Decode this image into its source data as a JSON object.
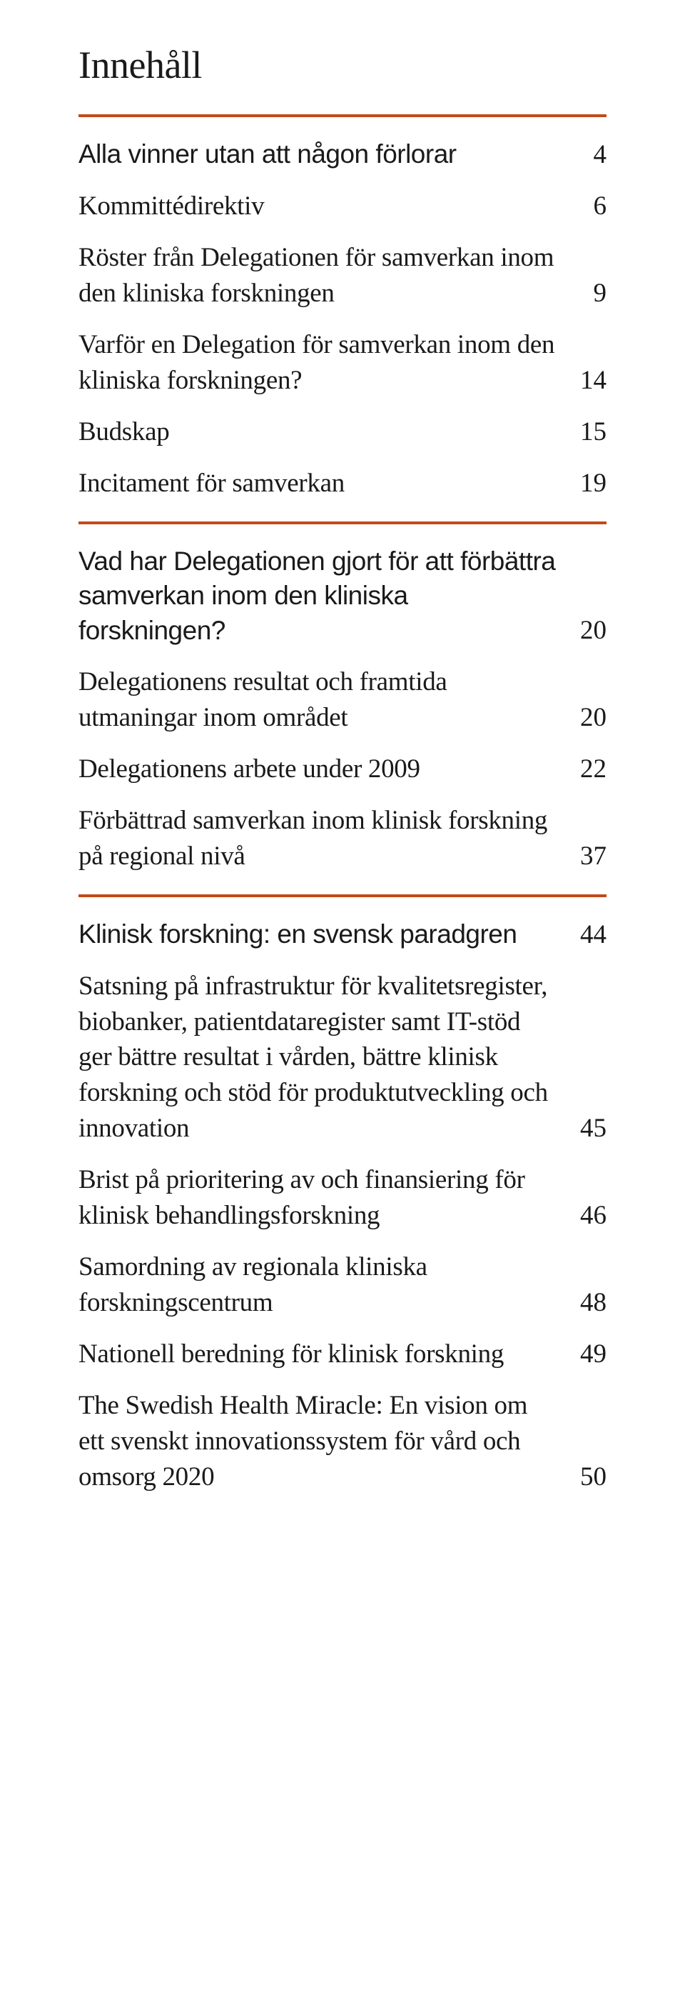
{
  "title": "Innehåll",
  "divider_color": "#c24a1a",
  "sections": [
    {
      "items": [
        {
          "label": "Alla vinner utan att någon förlorar",
          "page": "4",
          "heading": true
        },
        {
          "label": "Kommittédirektiv",
          "page": "6"
        },
        {
          "label": "Röster från Delegationen för samverkan inom den kliniska forskningen",
          "page": "9"
        },
        {
          "label": "Varför en Delegation för samverkan inom den kliniska forskningen?",
          "page": "14"
        },
        {
          "label": "Budskap",
          "page": "15"
        },
        {
          "label": "Incitament för samverkan",
          "page": "19"
        }
      ]
    },
    {
      "items": [
        {
          "label": "Vad har Delegationen gjort för att förbättra samverkan inom den kliniska forskningen?",
          "page": "20",
          "heading": true
        },
        {
          "label": "Delegationens resultat och framtida utmaningar inom området",
          "page": "20"
        },
        {
          "label": "Delegationens arbete under 2009",
          "page": "22"
        },
        {
          "label": "Förbättrad samverkan inom klinisk forskning på regional nivå",
          "page": "37"
        }
      ]
    },
    {
      "items": [
        {
          "label": "Klinisk forskning: en svensk paradgren",
          "page": "44",
          "heading": true
        },
        {
          "label": "Satsning på infrastruktur för kvalitets­register, biobanker, patientdataregister samt IT-stöd ger bättre resultat i vården, bättre klinisk forskning och stöd för produktutveckling och innovation",
          "page": "45"
        },
        {
          "label": "Brist på prioritering av och finansiering för klinisk behandlingsforskning",
          "page": "46"
        },
        {
          "label": "Samordning av regionala kliniska forskningscentrum",
          "page": "48"
        },
        {
          "label": "Nationell beredning för klinisk forskning",
          "page": "49"
        },
        {
          "label": "The Swedish Health Miracle: En vision om ett svenskt innovations­system för vård och omsorg 2020",
          "page": "50"
        }
      ]
    }
  ]
}
